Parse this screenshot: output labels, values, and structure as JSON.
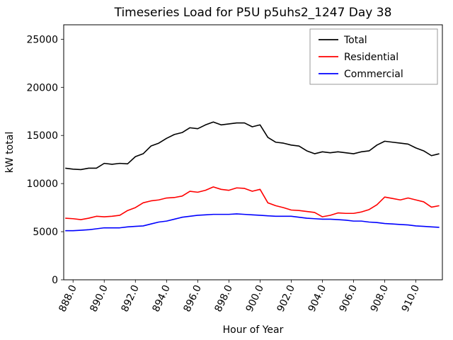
{
  "figure": {
    "title": "Timeseries Load for P5U p5uhs2_1247  Day 38"
  },
  "chart_data": {
    "type": "line",
    "title": "Timeseries Load for P5U p5uhs2_1247  Day 38",
    "xlabel": "Hour of Year",
    "ylabel": "kW total",
    "xlim": [
      887.4,
      911.7
    ],
    "ylim": [
      0,
      26500
    ],
    "grid": false,
    "legend_position": "upper right",
    "xtick_values": [
      888,
      890,
      892,
      894,
      896,
      898,
      900,
      902,
      904,
      906,
      908,
      910
    ],
    "xtick_labels": [
      "888.0",
      "890.0",
      "892.0",
      "894.0",
      "896.0",
      "898.0",
      "900.0",
      "902.0",
      "904.0",
      "906.0",
      "908.0",
      "910.0"
    ],
    "ytick_values": [
      0,
      5000,
      10000,
      15000,
      20000,
      25000
    ],
    "ytick_labels": [
      "0",
      "5000",
      "10000",
      "15000",
      "20000",
      "25000"
    ],
    "x": [
      887.5,
      888.0,
      888.5,
      889.0,
      889.5,
      890.0,
      890.5,
      891.0,
      891.5,
      892.0,
      892.5,
      893.0,
      893.5,
      894.0,
      894.5,
      895.0,
      895.5,
      896.0,
      896.5,
      897.0,
      897.5,
      898.0,
      898.5,
      899.0,
      899.5,
      900.0,
      900.5,
      901.0,
      901.5,
      902.0,
      902.5,
      903.0,
      903.5,
      904.0,
      904.5,
      905.0,
      905.5,
      906.0,
      906.5,
      907.0,
      907.5,
      908.0,
      908.5,
      909.0,
      909.5,
      910.0,
      910.5,
      911.0,
      911.5
    ],
    "series": [
      {
        "name": "Total",
        "color": "#000000",
        "values": [
          11600,
          11500,
          11450,
          11600,
          11600,
          12100,
          12000,
          12100,
          12050,
          12800,
          13100,
          13900,
          14200,
          14700,
          15100,
          15300,
          15800,
          15700,
          16100,
          16400,
          16100,
          16200,
          16300,
          16300,
          15900,
          16100,
          14800,
          14300,
          14200,
          14000,
          13900,
          13400,
          13100,
          13300,
          13200,
          13300,
          13200,
          13100,
          13300,
          13400,
          14000,
          14400,
          14300,
          14200,
          14100,
          13700,
          13400,
          12900,
          13100
        ]
      },
      {
        "name": "Residential",
        "color": "#ff0000",
        "values": [
          6400,
          6350,
          6250,
          6400,
          6600,
          6550,
          6600,
          6700,
          7200,
          7500,
          8000,
          8200,
          8300,
          8500,
          8550,
          8700,
          9200,
          9100,
          9300,
          9650,
          9400,
          9300,
          9550,
          9500,
          9200,
          9400,
          8000,
          7700,
          7500,
          7250,
          7200,
          7100,
          7000,
          6550,
          6700,
          6950,
          6900,
          6900,
          7050,
          7300,
          7800,
          8600,
          8450,
          8300,
          8500,
          8300,
          8100,
          7550,
          7700
        ]
      },
      {
        "name": "Commercial",
        "color": "#0000ff",
        "values": [
          5100,
          5100,
          5150,
          5200,
          5300,
          5400,
          5400,
          5400,
          5500,
          5550,
          5600,
          5800,
          6000,
          6100,
          6300,
          6500,
          6600,
          6700,
          6750,
          6800,
          6800,
          6800,
          6850,
          6800,
          6750,
          6700,
          6650,
          6600,
          6600,
          6600,
          6500,
          6400,
          6350,
          6300,
          6300,
          6250,
          6200,
          6100,
          6100,
          6000,
          5950,
          5850,
          5800,
          5750,
          5700,
          5600,
          5550,
          5500,
          5450
        ]
      }
    ]
  }
}
